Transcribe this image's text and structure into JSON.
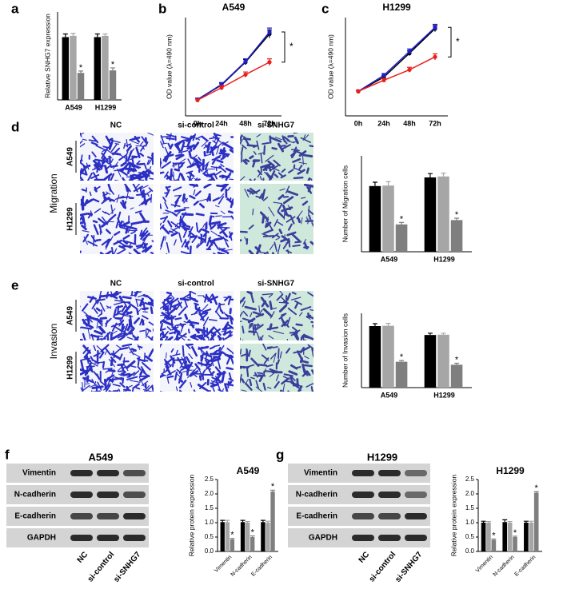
{
  "panel_labels": [
    "a",
    "b",
    "c",
    "d",
    "e",
    "f",
    "g"
  ],
  "migration": {
    "title": "Migration",
    "columns": [
      "NC",
      "si-control",
      "si-SNHG7"
    ],
    "rows": [
      "A549",
      "H1299"
    ]
  },
  "invasion": {
    "title": "Invasion",
    "columns": [
      "NC",
      "si-control",
      "si-SNHG7"
    ],
    "rows": [
      "A549",
      "H1299"
    ]
  },
  "blot_a549": {
    "title": "A549",
    "proteins": [
      "Vimentin",
      "N-cadherin",
      "E-cadherin",
      "GAPDH"
    ],
    "lanes": [
      "NC",
      "si-control",
      "si-SNHG7"
    ]
  },
  "blot_h1299": {
    "title": "H1299",
    "proteins": [
      "Vimentin",
      "N-cadherin",
      "E-cadherin",
      "GAPDH"
    ],
    "lanes": [
      "NC",
      "si-control",
      "si-SNHG7"
    ]
  },
  "chart_data": [
    {
      "type": "bar",
      "ylabel": "Relative SNHG7 expression",
      "categories": [
        "A549",
        "H1299"
      ],
      "ylim": [
        0,
        1.4
      ],
      "series": [
        {
          "color": "#000000",
          "values": [
            1.0,
            1.0
          ],
          "errors": [
            0.05,
            0.05
          ]
        },
        {
          "color": "#a6a6a6",
          "values": [
            1.02,
            1.02
          ],
          "errors": [
            0.04,
            0.03
          ]
        },
        {
          "color": "#7f7f7f",
          "values": [
            0.43,
            0.47
          ],
          "errors": [
            0.03,
            0.04
          ],
          "marks": [
            "*",
            "*"
          ]
        }
      ]
    },
    {
      "type": "line",
      "title": "A549",
      "ylabel": "OD value (λ=490 nm)",
      "categories": [
        "0h",
        "24h",
        "48h",
        "72h"
      ],
      "ylim": [
        0,
        1.5
      ],
      "bracket": "*",
      "series": [
        {
          "color": "#000000",
          "values": [
            0.25,
            0.47,
            0.82,
            1.25
          ],
          "errors": [
            0.02,
            0.03,
            0.04,
            0.06
          ]
        },
        {
          "color": "#1f1fd0",
          "values": [
            0.25,
            0.48,
            0.83,
            1.28
          ],
          "errors": [
            0.02,
            0.03,
            0.04,
            0.06
          ]
        },
        {
          "color": "#e8201c",
          "values": [
            0.24,
            0.43,
            0.63,
            0.82
          ],
          "errors": [
            0.02,
            0.03,
            0.04,
            0.05
          ]
        }
      ]
    },
    {
      "type": "line",
      "title": "H1299",
      "ylabel": "OD value (λ=490 nm)",
      "categories": [
        "0h",
        "24h",
        "48h",
        "72h"
      ],
      "ylim": [
        0,
        1.6
      ],
      "bracket": "*",
      "series": [
        {
          "color": "#000000",
          "values": [
            0.4,
            0.63,
            1.02,
            1.42
          ],
          "errors": [
            0.02,
            0.03,
            0.04,
            0.05
          ]
        },
        {
          "color": "#1f1fd0",
          "values": [
            0.4,
            0.66,
            1.05,
            1.44
          ],
          "errors": [
            0.02,
            0.03,
            0.04,
            0.05
          ]
        },
        {
          "color": "#e8201c",
          "values": [
            0.4,
            0.58,
            0.75,
            0.96
          ],
          "errors": [
            0.02,
            0.03,
            0.04,
            0.05
          ]
        }
      ]
    },
    {
      "type": "bar",
      "ylabel": "Number of Migration cells",
      "categories": [
        "A549",
        "H1299"
      ],
      "ylim": [
        0,
        200
      ],
      "series": [
        {
          "color": "#000000",
          "values": [
            137,
            155
          ],
          "errors": [
            8,
            8
          ]
        },
        {
          "color": "#a6a6a6",
          "values": [
            138,
            157
          ],
          "errors": [
            8,
            7
          ]
        },
        {
          "color": "#7f7f7f",
          "values": [
            57,
            66
          ],
          "errors": [
            4,
            4
          ],
          "marks": [
            "*",
            "*"
          ]
        }
      ]
    },
    {
      "type": "bar",
      "ylabel": "Number of Invasion cells",
      "categories": [
        "A549",
        "H1299"
      ],
      "ylim": [
        0,
        250
      ],
      "series": [
        {
          "color": "#000000",
          "values": [
            207,
            177
          ],
          "errors": [
            8,
            6
          ]
        },
        {
          "color": "#a6a6a6",
          "values": [
            208,
            178
          ],
          "errors": [
            8,
            5
          ]
        },
        {
          "color": "#7f7f7f",
          "values": [
            87,
            77
          ],
          "errors": [
            4,
            5
          ],
          "marks": [
            "*",
            "*"
          ]
        }
      ]
    },
    {
      "type": "bar",
      "title": "A549",
      "ylabel": "Relative protein expression",
      "categories": [
        "Vimentin",
        "N-cadherin",
        "E-cadherin"
      ],
      "ylim": [
        0,
        2.5
      ],
      "yticks": [
        {
          "value": 0,
          "label": "0.0"
        },
        {
          "value": 0.5,
          "label": "0.5"
        },
        {
          "value": 1,
          "label": "1.0"
        },
        {
          "value": 1.5,
          "label": "1.5"
        },
        {
          "value": 2,
          "label": "2.0"
        },
        {
          "value": 2.5,
          "label": "2.5"
        }
      ],
      "series": [
        {
          "color": "#000000",
          "values": [
            1.02,
            1.02,
            1.02
          ],
          "errors": [
            0.06,
            0.06,
            0.06
          ]
        },
        {
          "color": "#a6a6a6",
          "values": [
            1.02,
            1.0,
            1.0
          ],
          "errors": [
            0.06,
            0.04,
            0.05
          ]
        },
        {
          "color": "#7f7f7f",
          "values": [
            0.42,
            0.5,
            2.08
          ],
          "errors": [
            0.03,
            0.04,
            0.05
          ],
          "marks": [
            "*",
            "*",
            "*"
          ]
        }
      ]
    },
    {
      "type": "bar",
      "title": "H1299",
      "ylabel": "Relative protein expression",
      "categories": [
        "Vimentin",
        "N-cadherin",
        "E-cadherin"
      ],
      "ylim": [
        0,
        2.5
      ],
      "yticks": [
        {
          "value": 0,
          "label": "0.0"
        },
        {
          "value": 0.5,
          "label": "0.5"
        },
        {
          "value": 1,
          "label": "1.0"
        },
        {
          "value": 1.5,
          "label": "1.5"
        },
        {
          "value": 2,
          "label": "2.0"
        },
        {
          "value": 2.5,
          "label": "2.5"
        }
      ],
      "series": [
        {
          "color": "#000000",
          "values": [
            1.0,
            1.02,
            1.0
          ],
          "errors": [
            0.05,
            0.08,
            0.05
          ]
        },
        {
          "color": "#a6a6a6",
          "values": [
            1.0,
            1.0,
            1.0
          ],
          "errors": [
            0.04,
            0.04,
            0.05
          ]
        },
        {
          "color": "#7f7f7f",
          "values": [
            0.4,
            0.5,
            2.04
          ],
          "errors": [
            0.03,
            0.03,
            0.04
          ],
          "marks": [
            "*",
            "*",
            "*"
          ]
        }
      ]
    }
  ]
}
